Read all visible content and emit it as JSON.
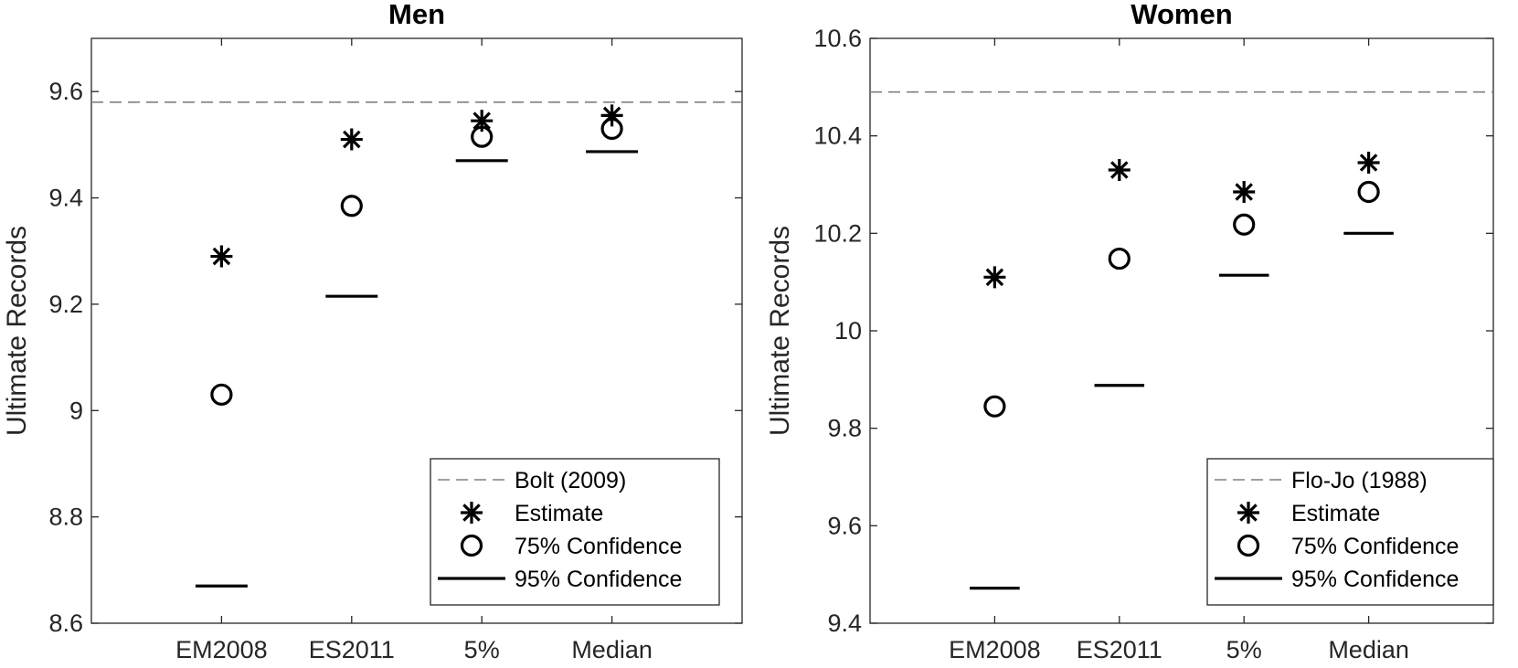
{
  "chart_data": [
    {
      "type": "scatter",
      "title": "Men",
      "xlabel": "",
      "ylabel": "Ultimate Records",
      "categories": [
        "EM2008",
        "ES2011",
        "5%",
        "Median"
      ],
      "ylim": [
        8.6,
        9.7
      ],
      "yticks": [
        8.6,
        8.8,
        9,
        9.2,
        9.4,
        9.6
      ],
      "ytick_labels": [
        "8.6",
        "8.8",
        "9",
        "9.2",
        "9.4",
        "9.6"
      ],
      "reference": {
        "name": "Bolt (2009)",
        "value": 9.58
      },
      "series": [
        {
          "name": "Estimate",
          "marker": "asterisk",
          "values": [
            9.29,
            9.51,
            9.545,
            9.555
          ]
        },
        {
          "name": "75% Confidence",
          "marker": "circle",
          "values": [
            9.03,
            9.385,
            9.515,
            9.53
          ]
        },
        {
          "name": "95% Confidence",
          "marker": "bar",
          "values": [
            8.67,
            9.215,
            9.47,
            9.487
          ]
        }
      ],
      "legend_position": "bottom-right",
      "grid": false
    },
    {
      "type": "scatter",
      "title": "Women",
      "xlabel": "",
      "ylabel": "Ultimate Records",
      "categories": [
        "EM2008",
        "ES2011",
        "5%",
        "Median"
      ],
      "ylim": [
        9.4,
        10.6
      ],
      "yticks": [
        9.4,
        9.6,
        9.8,
        10,
        10.2,
        10.4,
        10.6
      ],
      "ytick_labels": [
        "9.4",
        "9.6",
        "9.8",
        "10",
        "10.2",
        "10.4",
        "10.6"
      ],
      "reference": {
        "name": "Flo-Jo (1988)",
        "value": 10.49
      },
      "series": [
        {
          "name": "Estimate",
          "marker": "asterisk",
          "values": [
            10.11,
            10.33,
            10.285,
            10.345
          ]
        },
        {
          "name": "75% Confidence",
          "marker": "circle",
          "values": [
            9.845,
            10.148,
            10.218,
            10.285
          ]
        },
        {
          "name": "95% Confidence",
          "marker": "bar",
          "values": [
            9.472,
            9.888,
            10.114,
            10.2
          ]
        }
      ],
      "legend_position": "bottom-right",
      "grid": false
    }
  ]
}
